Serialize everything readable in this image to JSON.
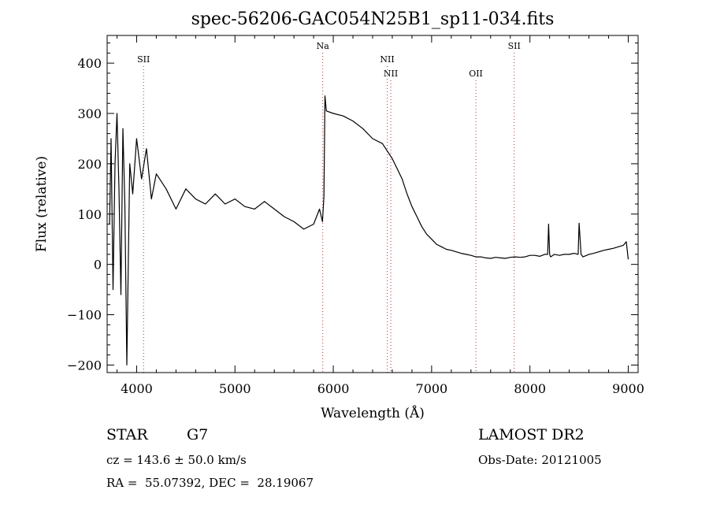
{
  "chart_data": {
    "type": "line",
    "title": "spec-56206-GAC054N25B1_sp11-034.fits",
    "xlabel": "Wavelength (Å)",
    "ylabel": "Flux (relative)",
    "xlim": [
      3700,
      9100
    ],
    "ylim": [
      -215,
      455
    ],
    "xticks": [
      4000,
      5000,
      6000,
      7000,
      8000,
      9000
    ],
    "yticks": [
      -200,
      -100,
      0,
      100,
      200,
      300,
      400
    ],
    "grid": false,
    "line_color": "#000000",
    "marker_color": "#b03030",
    "spectral_lines": [
      {
        "label": "SII",
        "wavelength": 4070,
        "row": 1
      },
      {
        "label": "Na",
        "wavelength": 5893,
        "row": 0
      },
      {
        "label": "NII",
        "wavelength": 6549,
        "row": 1
      },
      {
        "label": "NII",
        "wavelength": 6585,
        "row": 2
      },
      {
        "label": "OII",
        "wavelength": 7450,
        "row": 2
      },
      {
        "label": "SII",
        "wavelength": 7840,
        "row": 0
      }
    ],
    "series": [
      {
        "x": [
          3725,
          3740,
          3760,
          3780,
          3800,
          3820,
          3840,
          3860,
          3880,
          3900,
          3930,
          3960,
          4000,
          4050,
          4100,
          4150,
          4200,
          4300,
          4400,
          4500,
          4600,
          4700,
          4800,
          4900,
          5000,
          5100,
          5200,
          5300,
          5400,
          5500,
          5600,
          5700,
          5800,
          5860,
          5890,
          5905,
          5915,
          5930,
          6000,
          6100,
          6200,
          6300,
          6400,
          6500,
          6550,
          6600,
          6650,
          6700,
          6750,
          6800,
          6850,
          6900,
          6950,
          7000,
          7050,
          7100,
          7150,
          7200,
          7250,
          7300,
          7350,
          7400,
          7450,
          7500,
          7550,
          7600,
          7650,
          7700,
          7750,
          7800,
          7850,
          7900,
          7950,
          8000,
          8050,
          8100,
          8150,
          8180,
          8190,
          8200,
          8210,
          8250,
          8300,
          8350,
          8400,
          8450,
          8490,
          8500,
          8520,
          8540,
          8600,
          8650,
          8700,
          8750,
          8800,
          8850,
          8900,
          8950,
          8980,
          9000
        ],
        "y": [
          80,
          250,
          -50,
          200,
          300,
          150,
          -60,
          270,
          120,
          -200,
          200,
          140,
          250,
          170,
          230,
          130,
          180,
          150,
          110,
          150,
          130,
          120,
          140,
          120,
          130,
          115,
          110,
          125,
          110,
          95,
          85,
          70,
          80,
          110,
          85,
          135,
          335,
          305,
          300,
          295,
          285,
          270,
          250,
          240,
          225,
          210,
          190,
          170,
          140,
          115,
          95,
          75,
          60,
          50,
          40,
          35,
          30,
          28,
          25,
          22,
          20,
          18,
          15,
          15,
          13,
          12,
          14,
          13,
          12,
          14,
          15,
          14,
          15,
          18,
          18,
          16,
          20,
          20,
          80,
          20,
          15,
          20,
          18,
          20,
          20,
          22,
          20,
          82,
          20,
          15,
          20,
          22,
          25,
          28,
          30,
          32,
          35,
          38,
          45,
          10
        ]
      }
    ]
  },
  "info": {
    "object_class": "STAR",
    "subclass": "G7",
    "redshift": "cz = 143.6 ± 50.0 km/s",
    "coords": "RA =  55.07392, DEC =  28.19067",
    "survey": "LAMOST DR2",
    "obs_date": "Obs-Date: 20121005"
  }
}
